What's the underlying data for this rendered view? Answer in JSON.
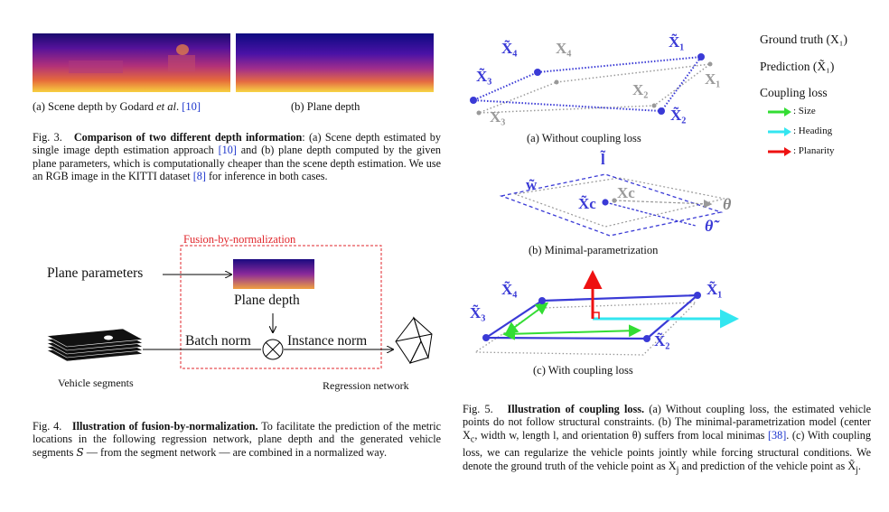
{
  "fig3": {
    "sub_a": "(a) Scene depth by Godard ",
    "sub_a_em": "et al",
    "sub_a_tail": ". ",
    "sub_a_cite": "[10]",
    "sub_b": "(b) Plane depth",
    "cap_label": "Fig. 3.",
    "cap_title": "Comparison of two different depth information",
    "cap_text1": ": (a) Scene depth estimated by single image depth estimation approach ",
    "cap_cite1": "[10]",
    "cap_text2": " and (b) plane depth computed by the given plane parameters, which is computationally cheaper than the scene depth estimation. We use an RGB image in the KITTI dataset ",
    "cap_cite2": "[8]",
    "cap_text3": " for inference in both cases."
  },
  "fig4": {
    "fusion_title": "Fusion-by-normalization",
    "plane_params": "Plane parameters",
    "plane_depth": "Plane depth",
    "batch_norm": "Batch norm",
    "instance_norm": "Instance norm",
    "vehicle_segments": "Vehicle segments",
    "regression_network": "Regression network",
    "cap_label": "Fig. 4.",
    "cap_title": "Illustration of fusion-by-normalization.",
    "cap_text": " To facilitate the prediction of the metric locations in the following regression network, plane depth and the generated vehicle segments 𝑆 — from the segment network — are combined in a normalized way."
  },
  "fig5": {
    "legend_gt": "Ground truth (X₁)",
    "legend_pred": "Prediction (X̃₁)",
    "legend_coupling": "Coupling loss",
    "legend_size": ": Size",
    "legend_heading": ": Heading",
    "legend_planarity": ": Planarity",
    "sub_a": "(a) Without coupling loss",
    "sub_b": "(b) Minimal-parametrization",
    "sub_c": "(c) With coupling loss",
    "cap_label": "Fig. 5.",
    "cap_title": "Illustration of coupling loss.",
    "cap_text1": " (a) Without coupling loss, the estimated vehicle points do not follow structural constraints. (b) The minimal-parametrization model (center X",
    "cap_text2": ", width w, length l, and orientation θ) suffers from local minimas ",
    "cap_cite": "[38]",
    "cap_text3": ". (c) With coupling loss, we can regularize the vehicle points jointly while forcing structural conditions. We denote the ground truth of the vehicle point as X",
    "cap_text4": " and prediction of the vehicle point as X̃",
    "cap_text5": ".",
    "lbl_x1t": "X̃₁",
    "lbl_x2t": "X̃₂",
    "lbl_x3t": "X̃₃",
    "lbl_x4t": "X̃₄",
    "lbl_x1": "X₁",
    "lbl_x2": "X₂",
    "lbl_x3": "X₃",
    "lbl_x4": "X₄",
    "lbl_w": "w̃",
    "lbl_l": "l̃",
    "lbl_xct": "X̃c",
    "lbl_xc": "Xc",
    "lbl_theta": "θ",
    "lbl_thetat": "θ̃"
  },
  "colors": {
    "pred": "#3a3ad6",
    "gt": "#9a9a9a",
    "size": "#33dd33",
    "heading": "#33e6f0",
    "planarity": "#ee1111",
    "fusion": "#e0262b"
  }
}
